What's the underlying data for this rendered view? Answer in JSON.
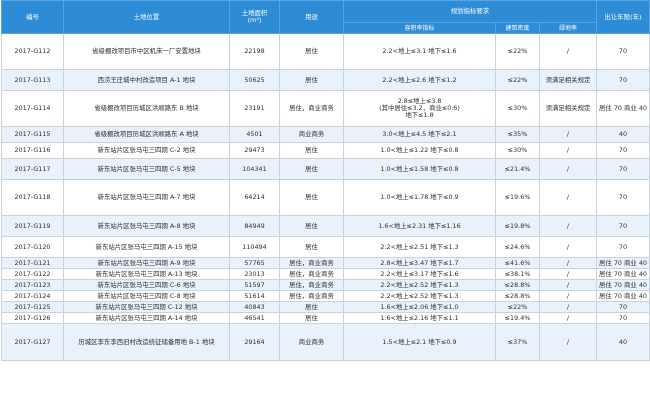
{
  "table": {
    "headers": {
      "id": "编号",
      "location": "土地位置",
      "area": "土地面积\n(m²)",
      "use": "用途",
      "planning": "规划指标要求",
      "far": "容积率指标",
      "density": "建筑密度",
      "green": "绿地率",
      "term": "出让年限(年)"
    },
    "rows": [
      {
        "id": "2017-G112",
        "location": "省级棚改项目市中区机床一厂安置地块",
        "area": "22198",
        "use": "居住",
        "far": "2.2<地上≤3.1 地下≤1.6",
        "density": "≤22%",
        "green": "/",
        "term": "70"
      },
      {
        "id": "2017-G113",
        "location": "西涝王庄城中村改造项目 A-1 地块",
        "area": "50625",
        "use": "居住",
        "far": "2.2<地上≤2.6 地下≤1.2",
        "density": "≤22%",
        "green": "须满足相关规定",
        "term": "70"
      },
      {
        "id": "2017-G114",
        "location": "省级棚改项目历城区洪顺路东 B 地块",
        "area": "23191",
        "use": "居住，商业商务",
        "far": "2.8≤地上≤3.8\n(其中居住≤3.2，商业≤0.6)\n地下≤1.8",
        "density": "≤30%",
        "green": "须满足相关规定",
        "term": "居住 70 商业 40"
      },
      {
        "id": "2017-G115",
        "location": "省级棚改项目历城区洪顺路东 A 地块",
        "area": "4501",
        "use": "商业商务",
        "far": "3.0<地上≤4.5 地下≤2.1",
        "density": "≤35%",
        "green": "/",
        "term": "40"
      },
      {
        "id": "2017-G116",
        "location": "新东站片区张马屯三四期 C-2 地块",
        "area": "29473",
        "use": "居住",
        "far": "1.0<地上≤1.22 地下≤0.8",
        "density": "≤30%",
        "green": "/",
        "term": "70"
      },
      {
        "id": "2017-G117",
        "location": "新东站片区张马屯三四期 C-5 地块",
        "area": "104341",
        "use": "居住",
        "far": "1.0<地上≤1.58 地下≤0.8",
        "density": "≤21.4%",
        "green": "/",
        "term": "70"
      },
      {
        "id": "2017-G118",
        "location": "新东站片区张马屯三四期 A-7 地块",
        "area": "64214",
        "use": "居住",
        "far": "1.0<地上≤1.78 地下≤0.9",
        "density": "≤19.6%",
        "green": "/",
        "term": "70"
      },
      {
        "id": "2017-G119",
        "location": "新东站片区张马屯三四期 A-8 地块",
        "area": "84949",
        "use": "居住",
        "far": "1.6<地上≤2.31 地下≤1.16",
        "density": "≤19.8%",
        "green": "/",
        "term": "70"
      },
      {
        "id": "2017-G120",
        "location": "新东站片区张马屯三四期 A-15 地块",
        "area": "110494",
        "use": "居住",
        "far": "2.2<地上≤2.51 地下≤1.3",
        "density": "≤24.6%",
        "green": "/",
        "term": "70"
      },
      {
        "id": "2017-G121",
        "location": "新东站片区张马屯三四期 A-9 地块",
        "area": "57765",
        "use": "居住，商业商务",
        "far": "2.8<地上≤3.47 地下≤1.7",
        "density": "≤41.6%",
        "green": "/",
        "term": "居住 70 商业 40"
      },
      {
        "id": "2017-G122",
        "location": "新东站片区张马屯三四期 A-13 地块",
        "area": "23013",
        "use": "居住，商业商务",
        "far": "2.2<地上≤3.17 地下≤1.6",
        "density": "≤38.1%",
        "green": "/",
        "term": "居住 70 商业 40"
      },
      {
        "id": "2017-G123",
        "location": "新东站片区张马屯三四期 C-6 地块",
        "area": "51597",
        "use": "居住，商业商务",
        "far": "2.2<地上≤2.52 地下≤1.3",
        "density": "≤28.8%",
        "green": "/",
        "term": "居住 70 商业 40"
      },
      {
        "id": "2017-G124",
        "location": "新东站片区张马屯三四期 C-8 地块",
        "area": "51614",
        "use": "居住，商业商务",
        "far": "2.2<地上≤2.52 地下≤1.3",
        "density": "≤28.8%",
        "green": "/",
        "term": "居住 70 商业 40"
      },
      {
        "id": "2017-G125",
        "location": "新东站片区张马屯三四期 C-12 地块",
        "area": "40843",
        "use": "居住",
        "far": "1.6<地上≤2.06 地下≤1.0",
        "density": "≤22%",
        "green": "/",
        "term": "70"
      },
      {
        "id": "2017-G126",
        "location": "新东站片区张马屯三四期 A-14 地块",
        "area": "46541",
        "use": "居住",
        "far": "1.6<地上≤2.16 地下≤1.1",
        "density": "≤19.4%",
        "green": "/",
        "term": "70"
      },
      {
        "id": "2017-G127",
        "location": "历城区李东李西旧村改造统征储备用地 B-1 地块",
        "area": "29164",
        "use": "商业商务",
        "far": "1.5<地上≤2.1 地下≤0.9",
        "density": "≤37%",
        "green": "/",
        "term": "40"
      }
    ]
  }
}
